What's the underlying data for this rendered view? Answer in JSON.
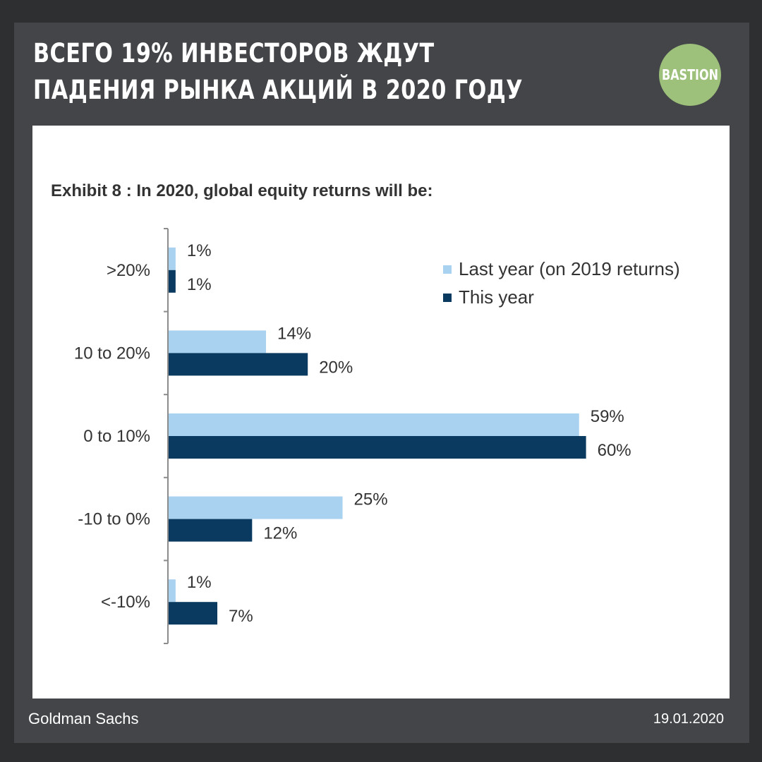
{
  "headline": "Всего 19% инвесторов ждут падения рынка акций в 2020 году",
  "logo": {
    "text": "BASTION"
  },
  "footer": {
    "source": "Goldman Sachs",
    "date": "19.01.2020"
  },
  "colors": {
    "last_year": "#a9d1f0",
    "this_year": "#0a3a5f"
  },
  "chart_data": {
    "type": "bar",
    "orientation": "horizontal",
    "title": "Exhibit 8 : In 2020, global equity returns will be:",
    "categories": [
      ">20%",
      "10 to 20%",
      "0 to 10%",
      "-10 to 0%",
      "<-10%"
    ],
    "series": [
      {
        "name": "Last year (on 2019 returns)",
        "values": [
          1,
          14,
          59,
          25,
          1
        ]
      },
      {
        "name": "This year",
        "values": [
          1,
          20,
          60,
          12,
          7
        ]
      }
    ],
    "value_labels": [
      [
        "1%",
        "14%",
        "59%",
        "25%",
        "1%"
      ],
      [
        "1%",
        "20%",
        "60%",
        "12%",
        "7%"
      ]
    ],
    "legend": "top-right",
    "grid": false
  }
}
